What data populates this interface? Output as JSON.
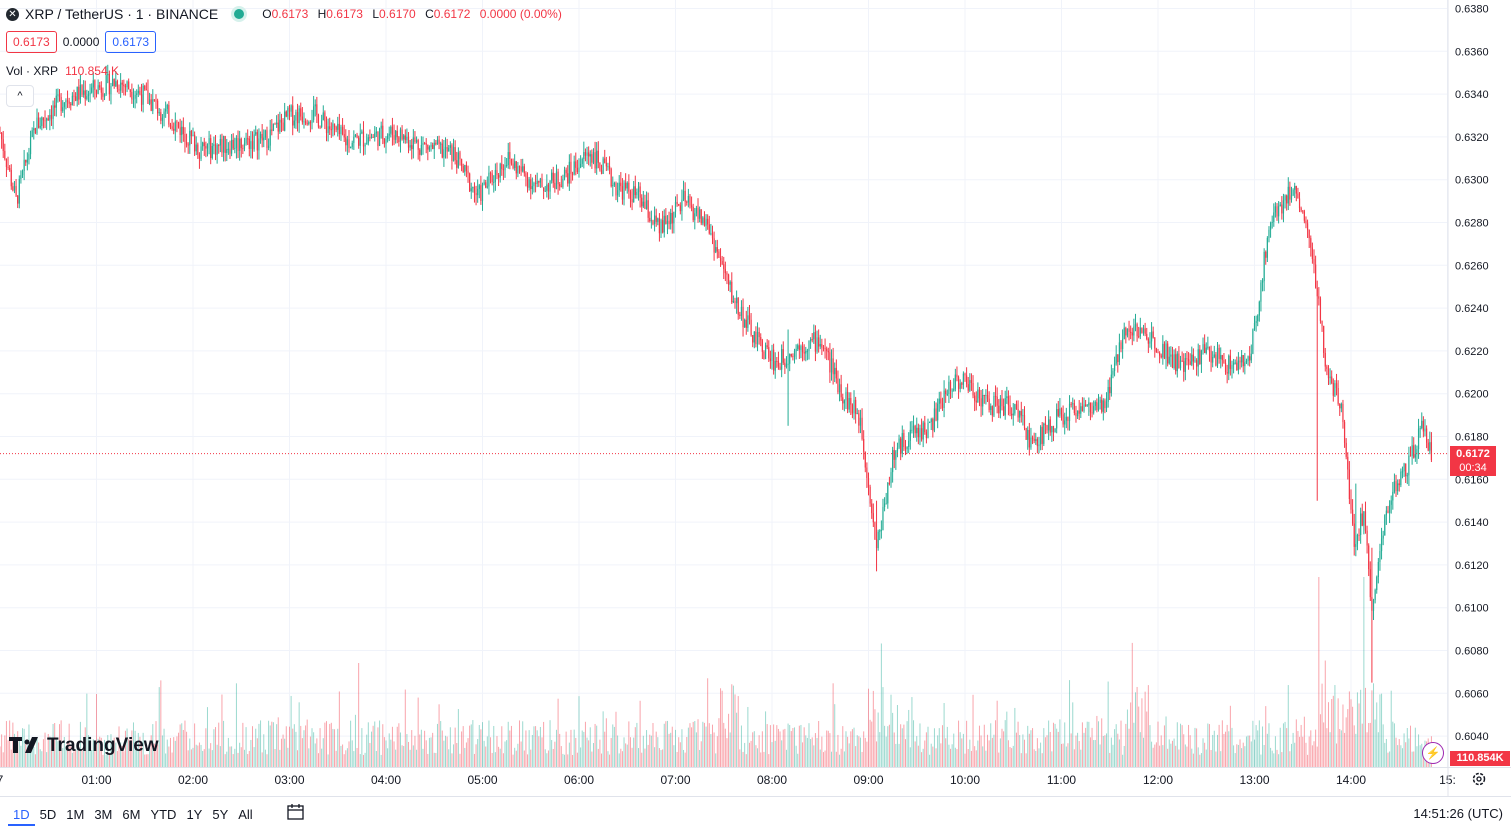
{
  "symbol": {
    "title": "XRP / TetherUS · 1 · BINANCE",
    "ohlc": [
      {
        "k": "O",
        "v": "0.6173"
      },
      {
        "k": "H",
        "v": "0.6173"
      },
      {
        "k": "L",
        "v": "0.6170"
      },
      {
        "k": "C",
        "v": "0.6172"
      }
    ],
    "change": "0.0000 (0.00%)"
  },
  "quote": {
    "sell": "0.6173",
    "spread": "0.0000",
    "buy": "0.6173"
  },
  "volume": {
    "label": "Vol · XRP",
    "value": "110.854 K",
    "tag": "110.854K"
  },
  "current": {
    "price": "0.6172",
    "countdown": "00:34"
  },
  "colors": {
    "up": "#22ab94",
    "down": "#f23645",
    "accent": "#2962ff",
    "grid": "#f0f3fa"
  },
  "ranges": [
    "1D",
    "5D",
    "1M",
    "3M",
    "6M",
    "YTD",
    "1Y",
    "5Y",
    "All"
  ],
  "active_range": "1D",
  "clock": "14:51:26 (UTC)",
  "logo_text": "TradingView",
  "collapse_glyph": "^",
  "bolt_glyph": "⚡",
  "chart_data": {
    "type": "candlestick",
    "title": "XRP / TetherUS · 1 · BINANCE",
    "x_ticks": [
      "7",
      "01:00",
      "02:00",
      "03:00",
      "04:00",
      "05:00",
      "06:00",
      "07:00",
      "08:00",
      "09:00",
      "10:00",
      "11:00",
      "12:00",
      "13:00",
      "14:00",
      "15:"
    ],
    "x_minutes": [
      0,
      60,
      120,
      180,
      240,
      300,
      360,
      420,
      480,
      540,
      600,
      660,
      720,
      780,
      840,
      900
    ],
    "y_ticks": [
      "0.6380",
      "0.6360",
      "0.6340",
      "0.6320",
      "0.6300",
      "0.6280",
      "0.6260",
      "0.6240",
      "0.6220",
      "0.6200",
      "0.6180",
      "0.6160",
      "0.6140",
      "0.6120",
      "0.6100",
      "0.6080",
      "0.6060",
      "0.6040"
    ],
    "ylim": [
      0.603,
      0.6382
    ],
    "last_price": 0.6172,
    "close_path": [
      [
        0,
        0.6322
      ],
      [
        10,
        0.629
      ],
      [
        22,
        0.6325
      ],
      [
        40,
        0.6338
      ],
      [
        57,
        0.6342
      ],
      [
        73,
        0.6346
      ],
      [
        88,
        0.634
      ],
      [
        104,
        0.633
      ],
      [
        125,
        0.6314
      ],
      [
        145,
        0.6317
      ],
      [
        165,
        0.6319
      ],
      [
        180,
        0.633
      ],
      [
        195,
        0.6331
      ],
      [
        215,
        0.6318
      ],
      [
        230,
        0.632
      ],
      [
        245,
        0.6322
      ],
      [
        262,
        0.6316
      ],
      [
        282,
        0.6312
      ],
      [
        297,
        0.6292
      ],
      [
        315,
        0.631
      ],
      [
        335,
        0.6296
      ],
      [
        352,
        0.6302
      ],
      [
        367,
        0.6313
      ],
      [
        383,
        0.6297
      ],
      [
        397,
        0.6292
      ],
      [
        410,
        0.6276
      ],
      [
        425,
        0.629
      ],
      [
        440,
        0.6279
      ],
      [
        455,
        0.6246
      ],
      [
        469,
        0.6226
      ],
      [
        483,
        0.6214
      ],
      [
        496,
        0.6222
      ],
      [
        510,
        0.6225
      ],
      [
        524,
        0.62
      ],
      [
        535,
        0.6188
      ],
      [
        545,
        0.6128
      ],
      [
        555,
        0.617
      ],
      [
        565,
        0.6181
      ],
      [
        578,
        0.6184
      ],
      [
        592,
        0.6206
      ],
      [
        600,
        0.6206
      ],
      [
        614,
        0.6195
      ],
      [
        630,
        0.6194
      ],
      [
        642,
        0.6176
      ],
      [
        653,
        0.6186
      ],
      [
        670,
        0.6194
      ],
      [
        686,
        0.6192
      ],
      [
        700,
        0.6232
      ],
      [
        718,
        0.6225
      ],
      [
        735,
        0.6212
      ],
      [
        750,
        0.622
      ],
      [
        765,
        0.6213
      ],
      [
        777,
        0.6215
      ],
      [
        790,
        0.6282
      ],
      [
        805,
        0.6297
      ],
      [
        815,
        0.627
      ],
      [
        825,
        0.621
      ],
      [
        835,
        0.619
      ],
      [
        842,
        0.613
      ],
      [
        848,
        0.6145
      ],
      [
        853,
        0.61
      ],
      [
        858,
        0.613
      ],
      [
        866,
        0.6155
      ],
      [
        875,
        0.6165
      ],
      [
        885,
        0.6185
      ],
      [
        890,
        0.6172
      ]
    ],
    "spikes": [
      [
        490,
        0.6185,
        0.623
      ],
      [
        545,
        0.6117,
        0.615
      ],
      [
        843,
        0.6128,
        0.6158
      ],
      [
        853,
        0.6065,
        0.6128
      ],
      [
        819,
        0.615,
        0.624
      ]
    ],
    "volume_axis_max": 200000,
    "volume_last": 110854
  }
}
